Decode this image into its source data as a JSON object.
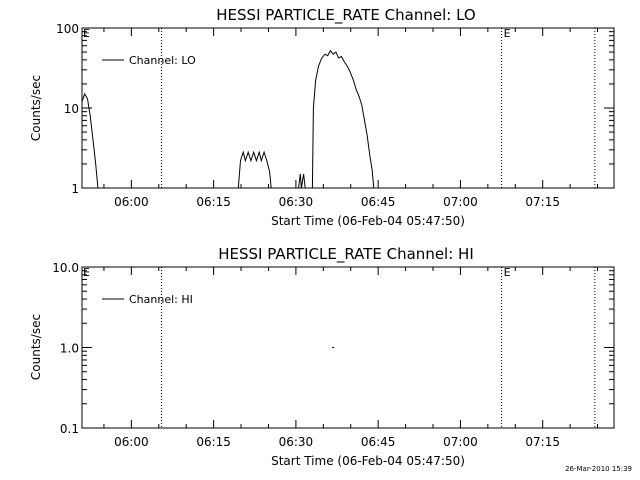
{
  "footer_timestamp": "26-Mar-2010 15:39",
  "chart_data": [
    {
      "type": "line",
      "title": "HESSI PARTICLE_RATE Channel: LO",
      "xlabel": "Start Time (06-Feb-04 05:47:50)",
      "ylabel": "Counts/sec",
      "yscale": "log",
      "ylim": [
        1,
        100
      ],
      "yticks": [
        1,
        10,
        100
      ],
      "ytick_labels": [
        "1",
        "10",
        "100"
      ],
      "xlim": [
        "05:51",
        "07:28"
      ],
      "xticks": [
        "06:00",
        "06:15",
        "06:30",
        "06:45",
        "07:00",
        "07:15"
      ],
      "legend": {
        "position": "top-left",
        "entries": [
          "Channel: LO"
        ]
      },
      "event_markers": [
        {
          "time": "06:05.5",
          "label": ""
        },
        {
          "time": "07:07.5",
          "label": "E"
        },
        {
          "time": "07:24.5",
          "label": ""
        }
      ],
      "corner_marker": "E",
      "series": [
        {
          "name": "Channel: LO",
          "segments": [
            [
              [
                51.0,
                12
              ],
              [
                51.5,
                15
              ],
              [
                52.0,
                13
              ],
              [
                52.5,
                8
              ],
              [
                53.0,
                4
              ],
              [
                53.5,
                2
              ],
              [
                53.9,
                1
              ]
            ],
            [
              [
                79.5,
                1
              ],
              [
                79.9,
                2.2
              ],
              [
                80.4,
                2.8
              ],
              [
                80.8,
                2.2
              ],
              [
                81.3,
                2.8
              ],
              [
                81.8,
                2.2
              ],
              [
                82.3,
                2.8
              ],
              [
                82.8,
                2.2
              ],
              [
                83.3,
                2.8
              ],
              [
                83.7,
                2.2
              ],
              [
                84.2,
                2.8
              ],
              [
                84.7,
                2.2
              ],
              [
                85.2,
                1.6
              ],
              [
                85.5,
                1
              ]
            ],
            [
              [
                90.5,
                1
              ],
              [
                90.8,
                1.5
              ],
              [
                91.0,
                1
              ],
              [
                91.4,
                1.5
              ],
              [
                91.7,
                1
              ]
            ],
            [
              [
                93.0,
                1
              ],
              [
                93.2,
                10
              ],
              [
                93.6,
                22
              ],
              [
                94.1,
                33
              ],
              [
                94.7,
                42
              ],
              [
                95.3,
                47
              ],
              [
                95.8,
                45
              ],
              [
                96.3,
                52
              ],
              [
                96.8,
                47
              ],
              [
                97.3,
                50
              ],
              [
                97.8,
                42
              ],
              [
                98.3,
                44
              ],
              [
                98.8,
                38
              ],
              [
                99.4,
                33
              ],
              [
                99.9,
                28
              ],
              [
                100.5,
                22
              ],
              [
                101.0,
                17
              ],
              [
                101.5,
                14
              ],
              [
                102.0,
                11
              ],
              [
                102.5,
                7
              ],
              [
                103.0,
                4.5
              ],
              [
                103.5,
                2.5
              ],
              [
                103.9,
                1.7
              ],
              [
                104.2,
                1
              ]
            ]
          ]
        }
      ]
    },
    {
      "type": "line",
      "title": "HESSI PARTICLE_RATE Channel: HI",
      "xlabel": "Start Time (06-Feb-04 05:47:50)",
      "ylabel": "Counts/sec",
      "yscale": "log",
      "ylim": [
        0.1,
        10
      ],
      "yticks": [
        0.1,
        1,
        10
      ],
      "ytick_labels": [
        "0.1",
        "1.0",
        "10.0"
      ],
      "xlim": [
        "05:51",
        "07:28"
      ],
      "xticks": [
        "06:00",
        "06:15",
        "06:30",
        "06:45",
        "07:00",
        "07:15"
      ],
      "legend": {
        "position": "top-left",
        "entries": [
          "Channel: HI"
        ]
      },
      "event_markers": [
        {
          "time": "06:05.5",
          "label": ""
        },
        {
          "time": "07:07.5",
          "label": "E"
        },
        {
          "time": "07:24.5",
          "label": ""
        }
      ],
      "corner_marker": "E",
      "series": [
        {
          "name": "Channel: HI",
          "segments": [
            [
              [
                96.6,
                1.0
              ],
              [
                97.0,
                1.0
              ]
            ]
          ]
        }
      ]
    }
  ]
}
